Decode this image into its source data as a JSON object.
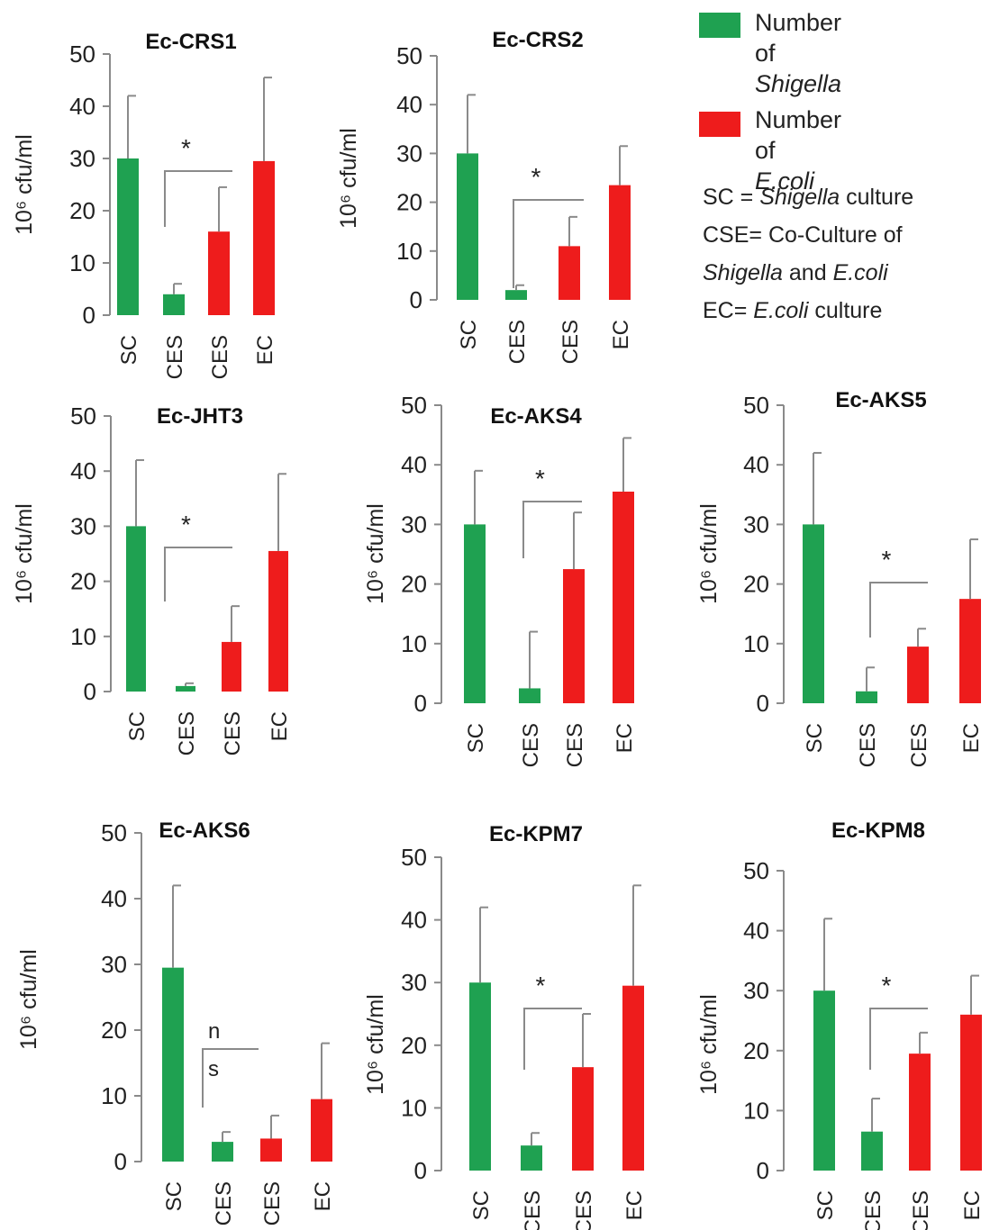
{
  "legend": {
    "shigella_line1": "Number of",
    "shigella_line2": "Shigella",
    "ecoli_line1": "Number",
    "ecoli_line2a": "of ",
    "ecoli_line2b": "E.coli",
    "note1a": "SC = ",
    "note1b": "Shigella",
    "note1c": " culture",
    "note2": "CSE= Co-Culture of",
    "note3a": "Shigella",
    "note3b": " and ",
    "note3c": "E.coli",
    "note4a": "EC= ",
    "note4b": "E.coli",
    "note4c": " culture"
  },
  "colors": {
    "shigella": "#1fa151",
    "ecoli": "#ee1c1c"
  },
  "chart_data": [
    {
      "type": "bar",
      "title": "Ec-CRS1",
      "ylabel": "10⁶ cfu/ml",
      "ylim": [
        0,
        50
      ],
      "yticks": [
        0,
        10,
        20,
        30,
        40,
        50
      ],
      "categories": [
        "SC",
        "CES",
        "CES",
        "EC"
      ],
      "values": [
        30,
        4,
        16,
        29.5
      ],
      "errors": [
        12,
        2,
        8.5,
        16
      ],
      "bar_colors": [
        "shigella",
        "shigella",
        "ecoli",
        "ecoli"
      ],
      "annotation": "*"
    },
    {
      "type": "bar",
      "title": "Ec-CRS2",
      "ylabel": "10⁶ cfu/ml",
      "ylim": [
        0,
        50
      ],
      "yticks": [
        0,
        10,
        20,
        30,
        40,
        50
      ],
      "categories": [
        "SC",
        "CES",
        "CES",
        "EC"
      ],
      "values": [
        30,
        2,
        11,
        23.5
      ],
      "errors": [
        12,
        1,
        6,
        8
      ],
      "bar_colors": [
        "shigella",
        "shigella",
        "ecoli",
        "ecoli"
      ],
      "annotation": "*"
    },
    {
      "type": "bar",
      "title": "Ec-JHT3",
      "ylabel": "10⁶ cfu/ml",
      "ylim": [
        0,
        50
      ],
      "yticks": [
        0,
        10,
        20,
        30,
        40,
        50
      ],
      "categories": [
        "SC",
        "CES",
        "CES",
        "EC"
      ],
      "values": [
        30,
        1,
        9,
        25.5
      ],
      "errors": [
        12,
        0.5,
        6.5,
        14
      ],
      "bar_colors": [
        "shigella",
        "shigella",
        "ecoli",
        "ecoli"
      ],
      "annotation": "*"
    },
    {
      "type": "bar",
      "title": "Ec-AKS4",
      "ylabel": "10⁶ cfu/ml",
      "ylim": [
        0,
        50
      ],
      "yticks": [
        0,
        10,
        20,
        30,
        40,
        50
      ],
      "categories": [
        "SC",
        "CES",
        "CES",
        "EC"
      ],
      "values": [
        30,
        2.5,
        22.5,
        35.5
      ],
      "errors": [
        9,
        9.5,
        9.5,
        9
      ],
      "bar_colors": [
        "shigella",
        "shigella",
        "ecoli",
        "ecoli"
      ],
      "annotation": "*"
    },
    {
      "type": "bar",
      "title": "Ec-AKS5",
      "ylabel": "10⁶ cfu/ml",
      "ylim": [
        0,
        50
      ],
      "yticks": [
        0,
        10,
        20,
        30,
        40,
        50
      ],
      "categories": [
        "SC",
        "CES",
        "CES",
        "EC"
      ],
      "values": [
        30,
        2,
        9.5,
        17.5
      ],
      "errors": [
        12,
        4,
        3,
        10
      ],
      "bar_colors": [
        "shigella",
        "shigella",
        "ecoli",
        "ecoli"
      ],
      "annotation": "*"
    },
    {
      "type": "bar",
      "title": "Ec-AKS6",
      "ylabel": "10⁶ cfu/ml",
      "ylim": [
        0,
        50
      ],
      "yticks": [
        0,
        10,
        20,
        30,
        40,
        50
      ],
      "categories": [
        "SC",
        "CES",
        "CES",
        "EC"
      ],
      "values": [
        29.5,
        3,
        3.5,
        9.5
      ],
      "errors": [
        12.5,
        1.5,
        3.5,
        8.5
      ],
      "bar_colors": [
        "shigella",
        "shigella",
        "ecoli",
        "ecoli"
      ],
      "annotation": "n s"
    },
    {
      "type": "bar",
      "title": "Ec-KPM7",
      "ylabel": "10⁶ cfu/ml",
      "ylim": [
        0,
        50
      ],
      "yticks": [
        0,
        10,
        20,
        30,
        40,
        50
      ],
      "categories": [
        "SC",
        "CES",
        "CES",
        "EC"
      ],
      "values": [
        30,
        4,
        16.5,
        29.5
      ],
      "errors": [
        12,
        2,
        8.5,
        16
      ],
      "bar_colors": [
        "shigella",
        "shigella",
        "ecoli",
        "ecoli"
      ],
      "annotation": "*"
    },
    {
      "type": "bar",
      "title": "Ec-KPM8",
      "ylabel": "10⁶ cfu/ml",
      "ylim": [
        0,
        50
      ],
      "yticks": [
        0,
        10,
        20,
        30,
        40,
        50
      ],
      "categories": [
        "SC",
        "CES",
        "CES",
        "EC"
      ],
      "values": [
        30,
        6.5,
        19.5,
        26
      ],
      "errors": [
        12,
        5.5,
        3.5,
        6.5
      ],
      "bar_colors": [
        "shigella",
        "shigella",
        "ecoli",
        "ecoli"
      ],
      "annotation": "*"
    }
  ]
}
